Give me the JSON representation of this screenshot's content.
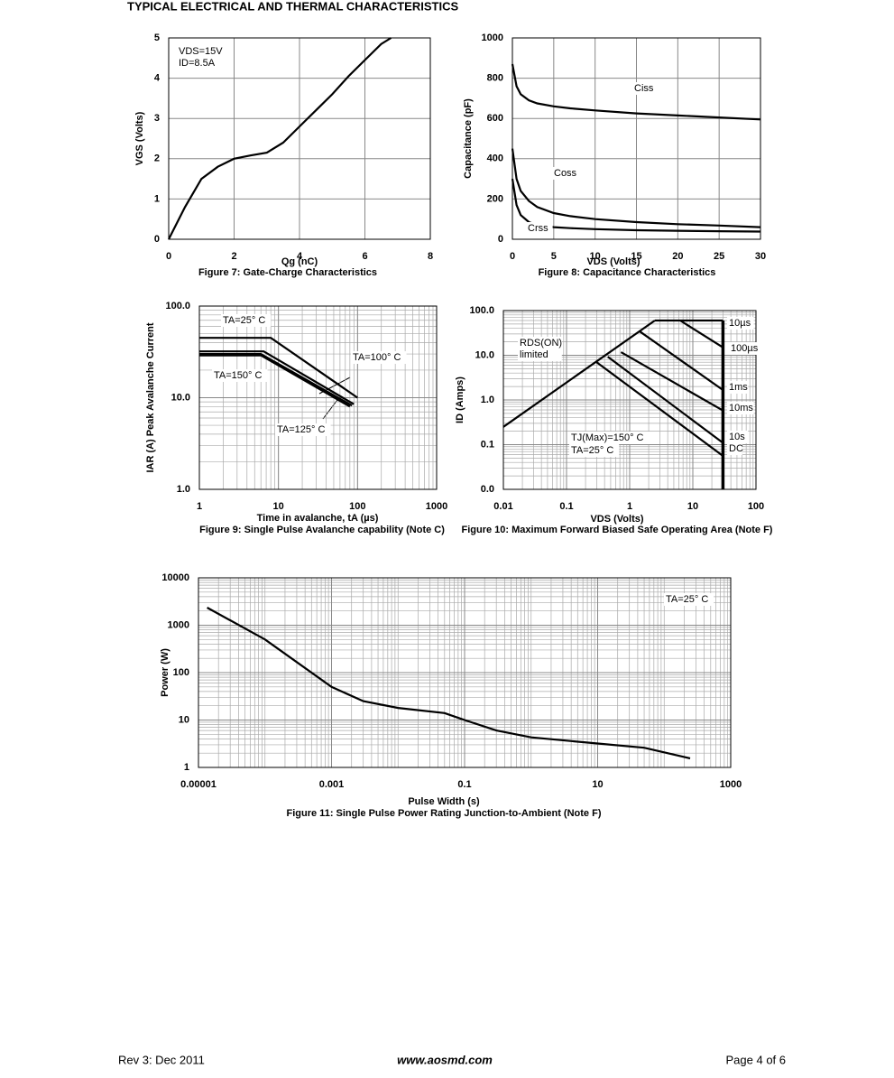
{
  "header": {
    "title": "TYPICAL ELECTRICAL AND THERMAL CHARACTERISTICS"
  },
  "chart_data": [
    {
      "type": "line",
      "title": "Figure 7: Gate-Charge Characteristics",
      "x_label": "Qg (nC)",
      "y_label": "VGS (Volts)",
      "xscale": "linear",
      "yscale": "linear",
      "xlim": [
        0,
        8
      ],
      "ylim": [
        0,
        5
      ],
      "xticks": [
        0,
        2,
        4,
        6,
        8
      ],
      "yticks": [
        0,
        1,
        2,
        3,
        4,
        5
      ],
      "grid": true,
      "minor_grid": false,
      "annotations": [
        "VDS=15V",
        "ID=8.5A"
      ],
      "series": [
        {
          "color": "#000000",
          "x": [
            0,
            0.5,
            1,
            1.5,
            2,
            2.5,
            3,
            3.5,
            4,
            4.5,
            5,
            5.5,
            6,
            6.5,
            6.8
          ],
          "values": [
            0,
            0.8,
            1.5,
            1.8,
            2,
            2.08,
            2.15,
            2.4,
            2.8,
            3.2,
            3.6,
            4.05,
            4.45,
            4.85,
            5
          ]
        }
      ]
    },
    {
      "type": "line",
      "title": "Figure 8: Capacitance Characteristics",
      "x_label": "VDS (Volts)",
      "y_label": "Capacitance (pF)",
      "xscale": "linear",
      "yscale": "linear",
      "xlim": [
        0,
        30
      ],
      "ylim": [
        0,
        1000
      ],
      "xticks": [
        0,
        5,
        10,
        15,
        20,
        25,
        30
      ],
      "yticks": [
        0,
        200,
        400,
        600,
        800,
        1000
      ],
      "grid": true,
      "minor_grid": false,
      "annotations": [],
      "series": [
        {
          "name": "Ciss",
          "color": "#000000",
          "x": [
            0,
            0.5,
            1,
            2,
            3,
            5,
            7,
            10,
            15,
            20,
            25,
            30
          ],
          "values": [
            870,
            760,
            720,
            690,
            675,
            660,
            650,
            640,
            625,
            615,
            605,
            595
          ]
        },
        {
          "name": "Coss",
          "color": "#000000",
          "x": [
            0,
            0.5,
            1,
            2,
            3,
            5,
            7,
            10,
            15,
            20,
            25,
            30
          ],
          "values": [
            450,
            300,
            240,
            190,
            160,
            130,
            115,
            100,
            85,
            75,
            68,
            60
          ]
        },
        {
          "name": "Crss",
          "color": "#000000",
          "x": [
            0,
            0.5,
            1,
            2,
            3,
            5,
            7,
            10,
            15,
            20,
            25,
            30
          ],
          "values": [
            300,
            170,
            120,
            85,
            70,
            60,
            55,
            50,
            45,
            42,
            40,
            38
          ]
        }
      ]
    },
    {
      "type": "line",
      "title": "Figure 9: Single Pulse Avalanche capability (Note C)",
      "x_label": "Time in avalanche, tA (µs)",
      "y_label": "IAR (A) Peak Avalanche Current",
      "xscale": "log",
      "yscale": "log",
      "xlim": [
        1,
        1000
      ],
      "ylim": [
        1,
        100
      ],
      "xticks": [
        1,
        10,
        100,
        1000
      ],
      "yticks": [
        {
          "value": 1,
          "label": "1.0"
        },
        {
          "value": 10,
          "label": "10.0"
        },
        {
          "value": 100,
          "label": "100.0"
        }
      ],
      "grid": true,
      "minor_grid": true,
      "annotations": [],
      "series": [
        {
          "name": "TA=25° C",
          "color": "#000000",
          "x": [
            1,
            8,
            100
          ],
          "values": [
            45,
            45,
            10
          ]
        },
        {
          "name": "TA=100° C",
          "color": "#000000",
          "x": [
            1,
            6.5,
            90
          ],
          "values": [
            32,
            32,
            8.5
          ]
        },
        {
          "name": "TA=150° C",
          "color": "#000000",
          "x": [
            1,
            6,
            80
          ],
          "values": [
            29,
            29,
            8
          ]
        },
        {
          "name": "TA=125° C",
          "color": "#000000",
          "x": [
            1,
            6,
            85
          ],
          "values": [
            30,
            30,
            8.2
          ]
        }
      ]
    },
    {
      "type": "line",
      "title": "Figure 10: Maximum Forward Biased Safe Operating Area (Note F)",
      "x_label": "VDS (Volts)",
      "y_label": "ID (Amps)",
      "xscale": "log",
      "yscale": "log",
      "xlim": [
        0.01,
        100
      ],
      "ylim": [
        0.01,
        100
      ],
      "xticks": [
        0.01,
        0.1,
        1,
        10,
        100
      ],
      "yticks": [
        {
          "value": 0.01,
          "label": "0.0"
        },
        {
          "value": 0.1,
          "label": "0.1"
        },
        {
          "value": 1,
          "label": "1.0"
        },
        {
          "value": 10,
          "label": "10.0"
        },
        {
          "value": 100,
          "label": "100.0"
        }
      ],
      "grid": true,
      "minor_grid": true,
      "annotations": [
        "RDS(ON)",
        "limited",
        "TJ(Max)=150° C",
        "TA=25° C"
      ],
      "series": [
        {
          "color": "#000000",
          "x": [
            0.01,
            2.5
          ],
          "values": [
            0.25,
            60
          ]
        },
        {
          "color": "#000000",
          "x": [
            30,
            30
          ],
          "values": [
            60,
            0.01
          ]
        },
        {
          "name": "10µs",
          "color": "#000000",
          "x": [
            2.5,
            30
          ],
          "values": [
            60,
            60
          ]
        },
        {
          "name": "100µs",
          "color": "#000000",
          "x": [
            6.3,
            30
          ],
          "values": [
            60,
            15
          ]
        },
        {
          "name": "1ms",
          "color": "#000000",
          "x": [
            1.45,
            30
          ],
          "values": [
            34,
            1.67
          ]
        },
        {
          "name": "10ms",
          "color": "#000000",
          "x": [
            0.73,
            30
          ],
          "values": [
            11.7,
            0.58
          ]
        },
        {
          "name": "10s",
          "color": "#000000",
          "x": [
            0.45,
            30
          ],
          "values": [
            9.3,
            0.11
          ]
        },
        {
          "name": "DC",
          "color": "#000000",
          "x": [
            0.3,
            30
          ],
          "values": [
            7,
            0.056
          ]
        }
      ]
    },
    {
      "type": "line",
      "title": "Figure 11: Single Pulse Power Rating Junction-to-Ambient (Note F)",
      "x_label": "Pulse Width (s)",
      "y_label": "Power (W)",
      "xscale": "log",
      "yscale": "log",
      "xlim": [
        1e-05,
        1000
      ],
      "ylim": [
        1,
        10000
      ],
      "xticks": [
        1e-05,
        0.001,
        0.1,
        10,
        1000
      ],
      "yticks": [
        1,
        10,
        100,
        1000,
        10000
      ],
      "grid": true,
      "minor_grid": true,
      "annotations": [
        "TA=25° C"
      ],
      "series": [
        {
          "color": "#000000",
          "x": [
            1.35e-05,
            0.0001,
            0.001,
            0.003,
            0.01,
            0.05,
            0.1,
            0.3,
            1,
            10,
            50,
            245
          ],
          "values": [
            2350,
            500,
            50,
            25,
            18,
            14,
            10,
            6,
            4.3,
            3.2,
            2.6,
            1.55
          ]
        }
      ]
    }
  ],
  "footer": {
    "left": "Rev 3: Dec 2011",
    "center": "www.aosmd.com",
    "right": "Page 4 of 6"
  }
}
